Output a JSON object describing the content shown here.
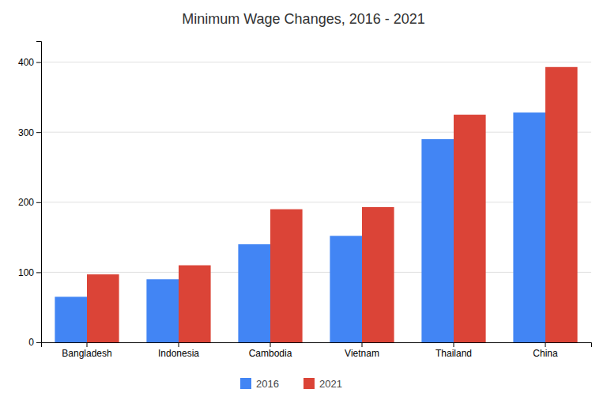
{
  "chart_data": {
    "type": "bar",
    "title": "Minimum Wage Changes, 2016 - 2021",
    "categories": [
      "Bangladesh",
      "Indonesia",
      "Cambodia",
      "Vietnam",
      "Thailand",
      "China"
    ],
    "series": [
      {
        "name": "2016",
        "color": "#4285F4",
        "values": [
          65,
          90,
          140,
          152,
          290,
          328
        ]
      },
      {
        "name": "2021",
        "color": "#DB4437",
        "values": [
          97,
          110,
          190,
          193,
          325,
          393
        ]
      }
    ],
    "ylim": [
      0,
      430
    ],
    "yticks": [
      0,
      100,
      200,
      300,
      400
    ],
    "grid": true,
    "legend": "bottom"
  }
}
